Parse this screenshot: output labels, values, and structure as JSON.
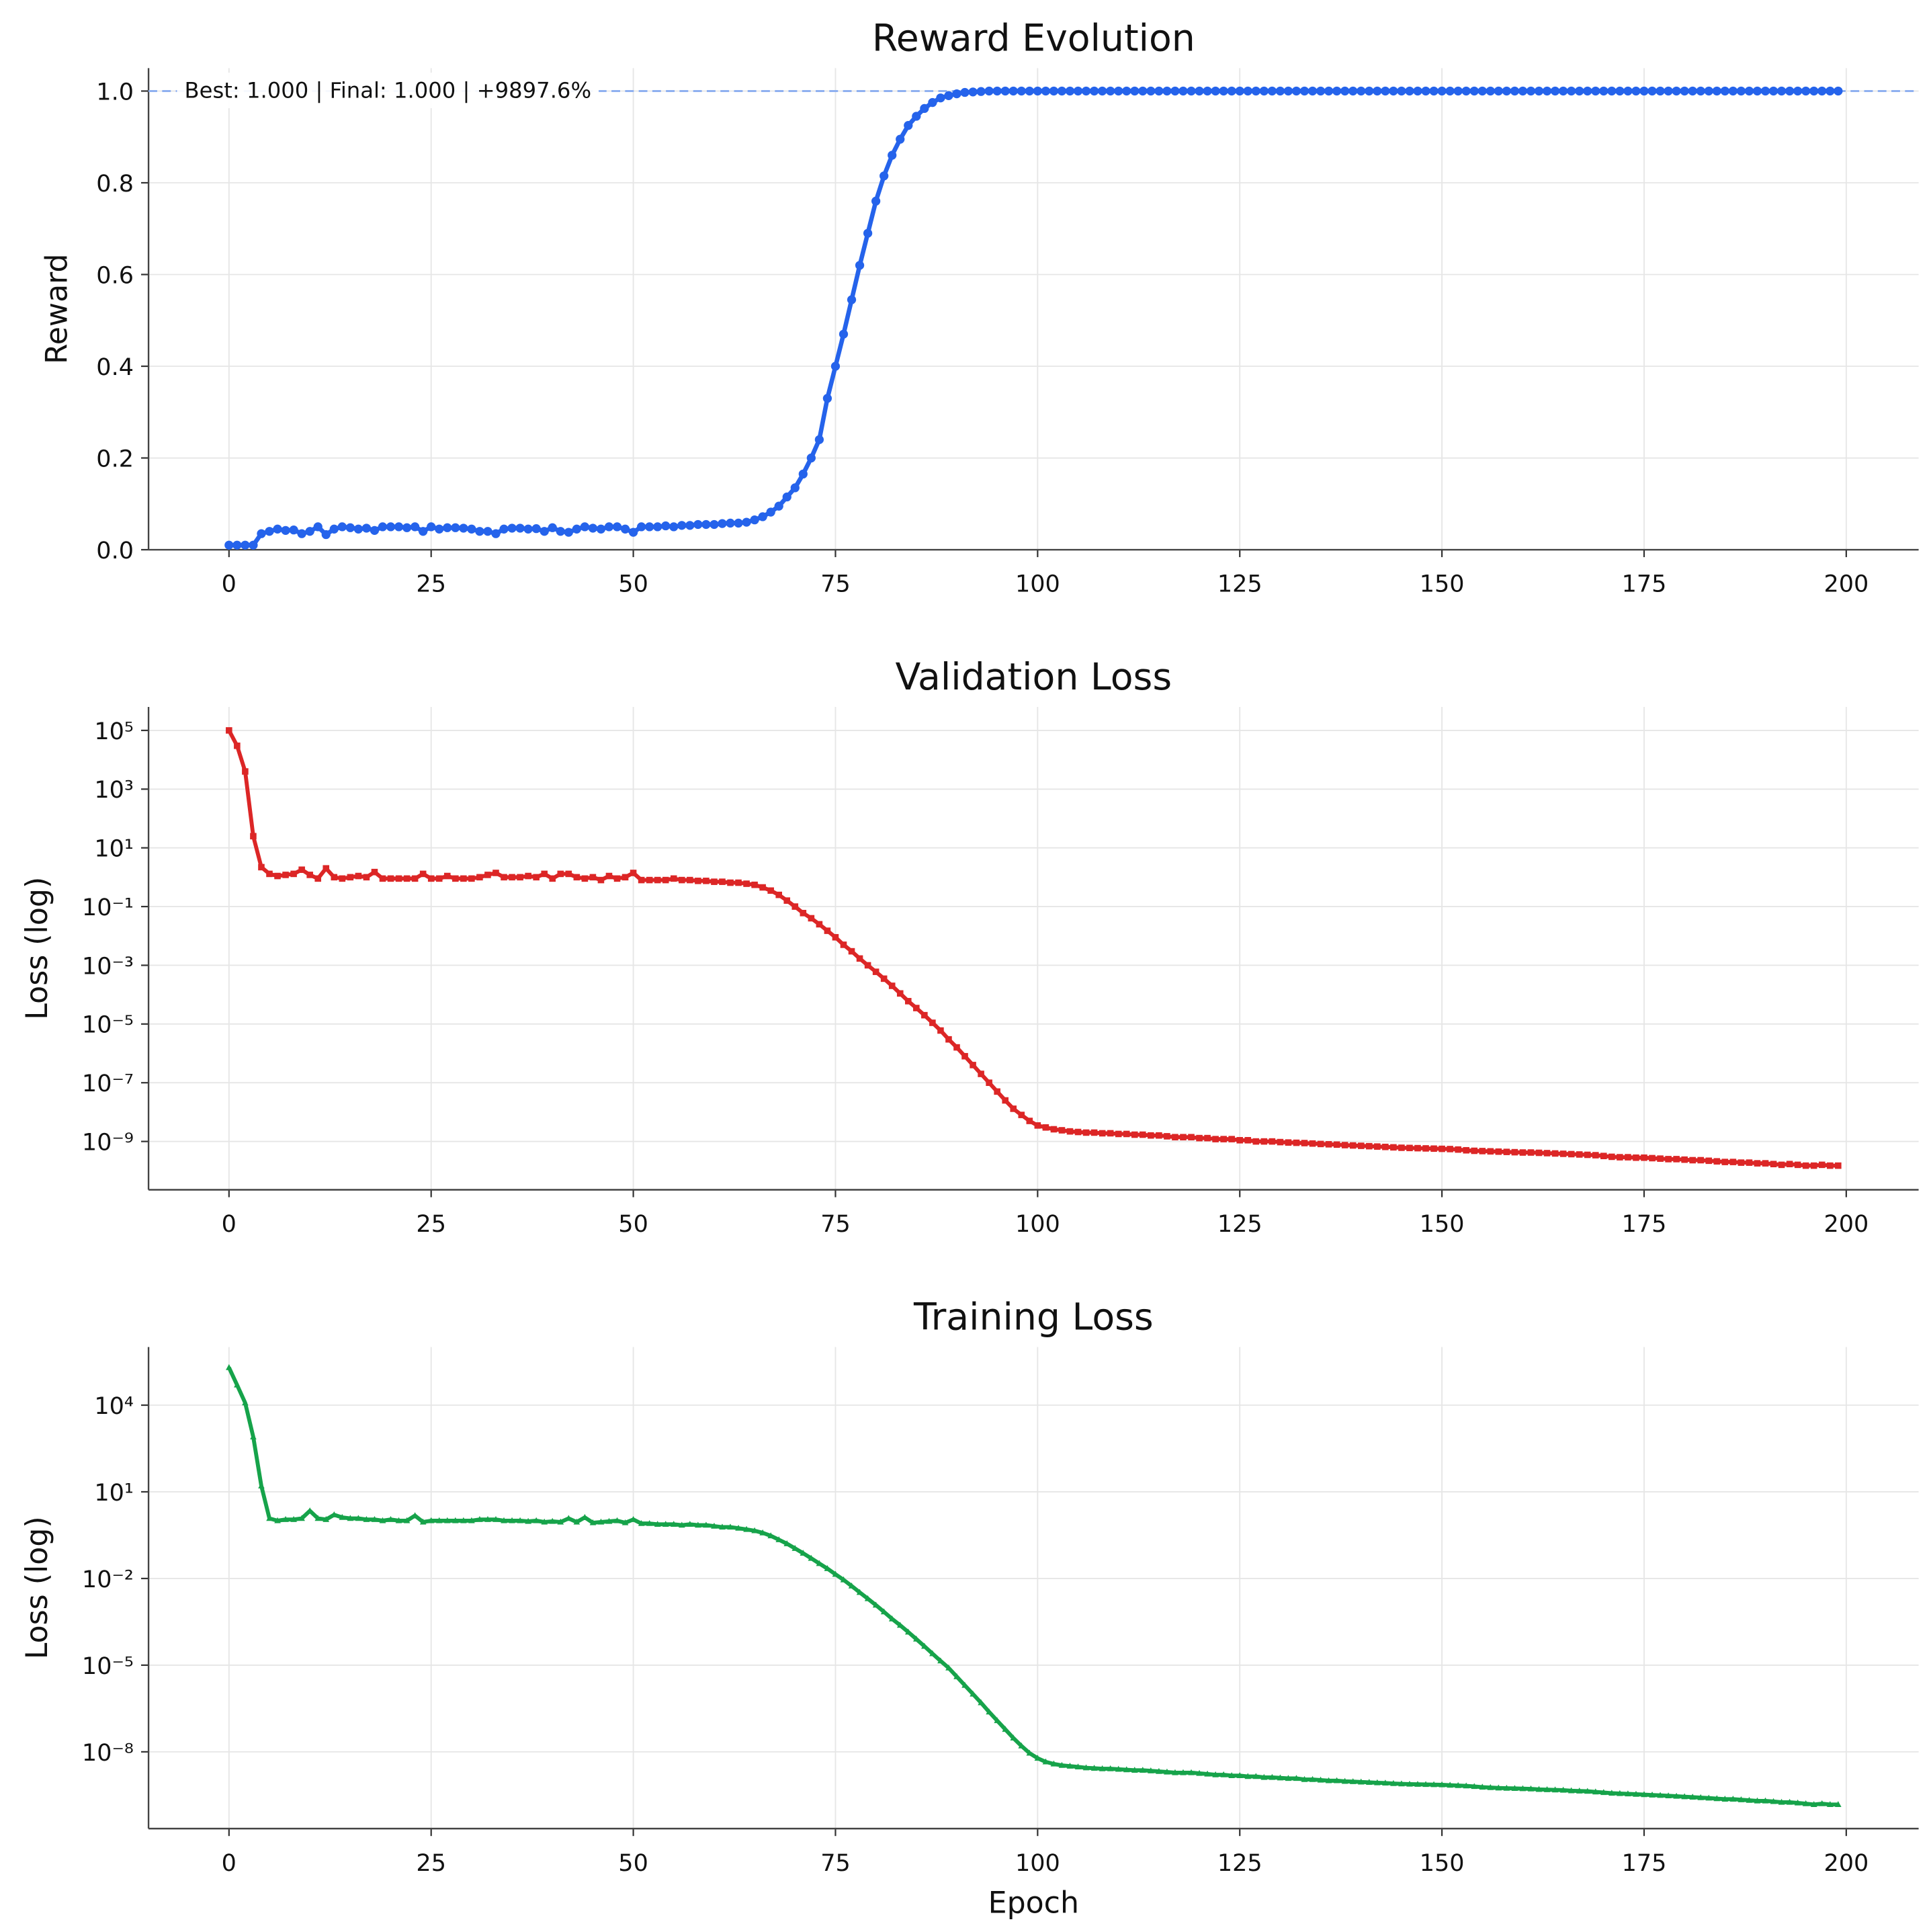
{
  "chart_data": [
    {
      "type": "line",
      "title": "Reward Evolution",
      "ylabel": "Reward",
      "marker": "circle",
      "color": "#2563eb",
      "annotation": "Best: 1.000 | Final: 1.000 | +9897.6%",
      "hline": 1.0,
      "hline_color": "#8fb0f0",
      "grid": true,
      "xlim": [
        -9.95,
        208.95
      ],
      "xticks": [
        0,
        25,
        50,
        75,
        100,
        125,
        150,
        175,
        200
      ],
      "ylim": [
        0,
        1.05
      ],
      "yticks": [
        {
          "value": 0,
          "label": "0.0"
        },
        {
          "value": 0.2,
          "label": "0.2"
        },
        {
          "value": 0.4,
          "label": "0.4"
        },
        {
          "value": 0.6,
          "label": "0.6"
        },
        {
          "value": 0.8,
          "label": "0.8"
        },
        {
          "value": 1,
          "label": "1.0"
        }
      ],
      "x": [
        0,
        1,
        2,
        3,
        4,
        5,
        6,
        7,
        8,
        9,
        10,
        11,
        12,
        13,
        14,
        15,
        16,
        17,
        18,
        19,
        20,
        21,
        22,
        23,
        24,
        25,
        26,
        27,
        28,
        29,
        30,
        31,
        32,
        33,
        34,
        35,
        36,
        37,
        38,
        39,
        40,
        41,
        42,
        43,
        44,
        45,
        46,
        47,
        48,
        49,
        50,
        51,
        52,
        53,
        54,
        55,
        56,
        57,
        58,
        59,
        60,
        61,
        62,
        63,
        64,
        65,
        66,
        67,
        68,
        69,
        70,
        71,
        72,
        73,
        74,
        75,
        76,
        77,
        78,
        79,
        80,
        81,
        82,
        83,
        84,
        85,
        86,
        87,
        88,
        89,
        90,
        91,
        92,
        93,
        94,
        95,
        96,
        97,
        98,
        99,
        100,
        101,
        102,
        103,
        104,
        105,
        106,
        107,
        108,
        109,
        110,
        111,
        112,
        113,
        114,
        115,
        116,
        117,
        118,
        119,
        120,
        121,
        122,
        123,
        124,
        125,
        126,
        127,
        128,
        129,
        130,
        131,
        132,
        133,
        134,
        135,
        136,
        137,
        138,
        139,
        140,
        141,
        142,
        143,
        144,
        145,
        146,
        147,
        148,
        149,
        150,
        151,
        152,
        153,
        154,
        155,
        156,
        157,
        158,
        159,
        160,
        161,
        162,
        163,
        164,
        165,
        166,
        167,
        168,
        169,
        170,
        171,
        172,
        173,
        174,
        175,
        176,
        177,
        178,
        179,
        180,
        181,
        182,
        183,
        184,
        185,
        186,
        187,
        188,
        189,
        190,
        191,
        192,
        193,
        194,
        195,
        196,
        197,
        198,
        199
      ],
      "values": [
        0.01,
        0.01,
        0.01,
        0.01,
        0.035,
        0.04,
        0.045,
        0.042,
        0.043,
        0.035,
        0.04,
        0.05,
        0.033,
        0.045,
        0.05,
        0.048,
        0.045,
        0.047,
        0.042,
        0.05,
        0.05,
        0.05,
        0.048,
        0.05,
        0.04,
        0.05,
        0.045,
        0.048,
        0.048,
        0.047,
        0.045,
        0.04,
        0.04,
        0.035,
        0.045,
        0.047,
        0.047,
        0.045,
        0.046,
        0.04,
        0.048,
        0.04,
        0.038,
        0.045,
        0.05,
        0.047,
        0.045,
        0.05,
        0.05,
        0.045,
        0.038,
        0.05,
        0.05,
        0.05,
        0.052,
        0.05,
        0.053,
        0.053,
        0.055,
        0.055,
        0.055,
        0.057,
        0.058,
        0.058,
        0.06,
        0.065,
        0.072,
        0.082,
        0.095,
        0.115,
        0.135,
        0.165,
        0.2,
        0.24,
        0.33,
        0.4,
        0.47,
        0.545,
        0.62,
        0.69,
        0.76,
        0.815,
        0.86,
        0.895,
        0.925,
        0.945,
        0.962,
        0.975,
        0.985,
        0.99,
        0.994,
        0.997,
        0.998,
        0.999,
        1,
        1,
        1,
        1,
        1,
        1,
        1,
        1,
        1,
        1,
        1,
        1,
        1,
        1,
        1,
        1,
        1,
        1,
        1,
        1,
        1,
        1,
        1,
        1,
        1,
        1,
        1,
        1,
        1,
        1,
        1,
        1,
        1,
        1,
        1,
        1,
        1,
        1,
        1,
        1,
        1,
        1,
        1,
        1,
        1,
        1,
        1,
        1,
        1,
        1,
        1,
        1,
        1,
        1,
        1,
        1,
        1,
        1,
        1,
        1,
        1,
        1,
        1,
        1,
        1,
        1,
        1,
        1,
        1,
        1,
        1,
        1,
        1,
        1,
        1,
        1,
        1,
        1,
        1,
        1,
        1,
        1,
        1,
        1,
        1,
        1,
        1,
        1,
        1,
        1,
        1,
        1,
        1,
        1,
        1,
        1,
        1,
        1,
        1,
        1,
        1,
        1,
        1,
        1,
        1,
        1
      ]
    },
    {
      "type": "line",
      "title": "Validation Loss",
      "ylabel": "Loss (log)",
      "marker": "square",
      "color": "#dc2626",
      "yscale": "log",
      "grid": true,
      "xlim": [
        -9.95,
        208.95
      ],
      "xticks": [
        0,
        25,
        50,
        75,
        100,
        125,
        150,
        175,
        200
      ],
      "ylim": [
        2.26e-11,
        630000.0
      ],
      "yticks": [
        {
          "value": 100000.0,
          "label": "10⁵"
        },
        {
          "value": 1000.0,
          "label": "10³"
        },
        {
          "value": 10.0,
          "label": "10¹"
        },
        {
          "value": 0.1,
          "label": "10⁻¹"
        },
        {
          "value": 0.001,
          "label": "10⁻³"
        },
        {
          "value": 1e-05,
          "label": "10⁻⁵"
        },
        {
          "value": 1e-07,
          "label": "10⁻⁷"
        },
        {
          "value": 1e-09,
          "label": "10⁻⁹"
        }
      ],
      "x": [
        0,
        1,
        2,
        3,
        4,
        5,
        6,
        7,
        8,
        9,
        10,
        11,
        12,
        13,
        14,
        15,
        16,
        17,
        18,
        19,
        20,
        21,
        22,
        23,
        24,
        25,
        26,
        27,
        28,
        29,
        30,
        31,
        32,
        33,
        34,
        35,
        36,
        37,
        38,
        39,
        40,
        41,
        42,
        43,
        44,
        45,
        46,
        47,
        48,
        49,
        50,
        51,
        52,
        53,
        54,
        55,
        56,
        57,
        58,
        59,
        60,
        61,
        62,
        63,
        64,
        65,
        66,
        67,
        68,
        69,
        70,
        71,
        72,
        73,
        74,
        75,
        76,
        77,
        78,
        79,
        80,
        81,
        82,
        83,
        84,
        85,
        86,
        87,
        88,
        89,
        90,
        91,
        92,
        93,
        94,
        95,
        96,
        97,
        98,
        99,
        100,
        101,
        102,
        103,
        104,
        105,
        106,
        107,
        108,
        109,
        110,
        111,
        112,
        113,
        114,
        115,
        116,
        117,
        118,
        119,
        120,
        121,
        122,
        123,
        124,
        125,
        126,
        127,
        128,
        129,
        130,
        131,
        132,
        133,
        134,
        135,
        136,
        137,
        138,
        139,
        140,
        141,
        142,
        143,
        144,
        145,
        146,
        147,
        148,
        149,
        150,
        151,
        152,
        153,
        154,
        155,
        156,
        157,
        158,
        159,
        160,
        161,
        162,
        163,
        164,
        165,
        166,
        167,
        168,
        169,
        170,
        171,
        172,
        173,
        174,
        175,
        176,
        177,
        178,
        179,
        180,
        181,
        182,
        183,
        184,
        185,
        186,
        187,
        188,
        189,
        190,
        191,
        192,
        193,
        194,
        195,
        196,
        197,
        198,
        199
      ],
      "values": [
        100000.0,
        30000.0,
        4000.0,
        25,
        2.2,
        1.3,
        1.1,
        1.2,
        1.3,
        1.8,
        1.2,
        0.9,
        2.0,
        1.0,
        0.9,
        1.0,
        1.1,
        1.0,
        1.5,
        0.9,
        0.9,
        0.9,
        0.9,
        0.9,
        1.3,
        0.9,
        0.9,
        1.1,
        0.9,
        0.9,
        0.9,
        1.0,
        1.2,
        1.4,
        1.0,
        1.0,
        1.0,
        1.1,
        1.0,
        1.3,
        0.9,
        1.3,
        1.3,
        1.0,
        0.9,
        1.0,
        0.8,
        1.1,
        0.9,
        1.0,
        1.4,
        0.8,
        0.8,
        0.8,
        0.8,
        0.9,
        0.8,
        0.8,
        0.75,
        0.75,
        0.7,
        0.7,
        0.65,
        0.65,
        0.6,
        0.55,
        0.45,
        0.35,
        0.25,
        0.16,
        0.1,
        0.06,
        0.04,
        0.025,
        0.015,
        0.009,
        0.005,
        0.003,
        0.0017,
        0.001,
        0.0006,
        0.00035,
        0.0002,
        0.00011,
        6e-05,
        3.5e-05,
        2e-05,
        1.1e-05,
        6e-06,
        3e-06,
        1.6e-06,
        8e-07,
        4e-07,
        2e-07,
        1e-07,
        5e-08,
        2.5e-08,
        1.3e-08,
        8e-09,
        5e-09,
        3.5e-09,
        3e-09,
        2.6e-09,
        2.4e-09,
        2.2e-09,
        2.1e-09,
        2e-09,
        2e-09,
        1.9e-09,
        1.9e-09,
        1.8e-09,
        1.8e-09,
        1.7e-09,
        1.7e-09,
        1.6e-09,
        1.6e-09,
        1.5e-09,
        1.4e-09,
        1.4e-09,
        1.4e-09,
        1.3e-09,
        1.3e-09,
        1.2e-09,
        1.2e-09,
        1.2e-09,
        1.1e-09,
        1.1e-09,
        1e-09,
        1e-09,
        1e-09,
        9.5e-10,
        9.2e-10,
        9e-10,
        8.8e-10,
        8.5e-10,
        8.2e-10,
        8e-10,
        7.8e-10,
        7.5e-10,
        7.3e-10,
        7.1e-10,
        6.9e-10,
        6.7e-10,
        6.5e-10,
        6.3e-10,
        6.1e-10,
        6e-10,
        5.9e-10,
        5.8e-10,
        5.7e-10,
        5.6e-10,
        5.5e-10,
        5.3e-10,
        5e-10,
        4.8e-10,
        4.7e-10,
        4.6e-10,
        4.5e-10,
        4.4e-10,
        4.3e-10,
        4.2e-10,
        4.2e-10,
        4.1e-10,
        4e-10,
        3.9e-10,
        3.8e-10,
        3.7e-10,
        3.6e-10,
        3.5e-10,
        3.4e-10,
        3.2e-10,
        3e-10,
        2.9e-10,
        2.9e-10,
        2.8e-10,
        2.8e-10,
        2.7e-10,
        2.6e-10,
        2.5e-10,
        2.5e-10,
        2.4e-10,
        2.3e-10,
        2.3e-10,
        2.2e-10,
        2.1e-10,
        2e-10,
        2e-10,
        1.9e-10,
        1.9e-10,
        1.8e-10,
        1.8e-10,
        1.7e-10,
        1.6e-10,
        1.7e-10,
        1.6e-10,
        1.5e-10,
        1.5e-10,
        1.6e-10,
        1.5e-10,
        1.5e-10
      ]
    },
    {
      "type": "line",
      "title": "Training Loss",
      "ylabel": "Loss (log)",
      "xlabel": "Epoch",
      "marker": "triangle",
      "color": "#16a34a",
      "yscale": "log",
      "grid": true,
      "xlim": [
        -9.95,
        208.95
      ],
      "xticks": [
        0,
        25,
        50,
        75,
        100,
        125,
        150,
        175,
        200
      ],
      "ylim": [
        2.2e-11,
        1030000.0
      ],
      "yticks": [
        {
          "value": 10000.0,
          "label": "10⁴"
        },
        {
          "value": 10.0,
          "label": "10¹"
        },
        {
          "value": 0.01,
          "label": "10⁻²"
        },
        {
          "value": 1e-05,
          "label": "10⁻⁵"
        },
        {
          "value": 1e-08,
          "label": "10⁻⁸"
        }
      ],
      "x": [
        0,
        1,
        2,
        3,
        4,
        5,
        6,
        7,
        8,
        9,
        10,
        11,
        12,
        13,
        14,
        15,
        16,
        17,
        18,
        19,
        20,
        21,
        22,
        23,
        24,
        25,
        26,
        27,
        28,
        29,
        30,
        31,
        32,
        33,
        34,
        35,
        36,
        37,
        38,
        39,
        40,
        41,
        42,
        43,
        44,
        45,
        46,
        47,
        48,
        49,
        50,
        51,
        52,
        53,
        54,
        55,
        56,
        57,
        58,
        59,
        60,
        61,
        62,
        63,
        64,
        65,
        66,
        67,
        68,
        69,
        70,
        71,
        72,
        73,
        74,
        75,
        76,
        77,
        78,
        79,
        80,
        81,
        82,
        83,
        84,
        85,
        86,
        87,
        88,
        89,
        90,
        91,
        92,
        93,
        94,
        95,
        96,
        97,
        98,
        99,
        100,
        101,
        102,
        103,
        104,
        105,
        106,
        107,
        108,
        109,
        110,
        111,
        112,
        113,
        114,
        115,
        116,
        117,
        118,
        119,
        120,
        121,
        122,
        123,
        124,
        125,
        126,
        127,
        128,
        129,
        130,
        131,
        132,
        133,
        134,
        135,
        136,
        137,
        138,
        139,
        140,
        141,
        142,
        143,
        144,
        145,
        146,
        147,
        148,
        149,
        150,
        151,
        152,
        153,
        154,
        155,
        156,
        157,
        158,
        159,
        160,
        161,
        162,
        163,
        164,
        165,
        166,
        167,
        168,
        169,
        170,
        171,
        172,
        173,
        174,
        175,
        176,
        177,
        178,
        179,
        180,
        181,
        182,
        183,
        184,
        185,
        186,
        187,
        188,
        189,
        190,
        191,
        192,
        193,
        194,
        195,
        196,
        197,
        198,
        199
      ],
      "values": [
        200000.0,
        50000.0,
        12000.0,
        800,
        16,
        1.2,
        1.0,
        1.1,
        1.1,
        1.2,
        2.2,
        1.2,
        1.1,
        1.6,
        1.3,
        1.2,
        1.2,
        1.1,
        1.1,
        1.0,
        1.1,
        1.0,
        1.0,
        1.5,
        0.9,
        1.0,
        1.0,
        1.0,
        1.0,
        1.0,
        1.0,
        1.1,
        1.1,
        1.1,
        1.0,
        1.0,
        1.0,
        0.95,
        1.0,
        0.9,
        0.95,
        0.9,
        1.2,
        0.9,
        1.3,
        0.85,
        0.9,
        0.95,
        1.0,
        0.85,
        1.1,
        0.8,
        0.8,
        0.75,
        0.75,
        0.75,
        0.7,
        0.75,
        0.7,
        0.7,
        0.65,
        0.6,
        0.6,
        0.55,
        0.5,
        0.45,
        0.38,
        0.3,
        0.22,
        0.16,
        0.11,
        0.075,
        0.05,
        0.033,
        0.022,
        0.014,
        0.009,
        0.0055,
        0.0033,
        0.002,
        0.0012,
        0.0007,
        0.0004,
        0.00024,
        0.00014,
        8e-05,
        4.5e-05,
        2.5e-05,
        1.4e-05,
        8e-06,
        4e-06,
        2e-06,
        1e-06,
        5e-07,
        2.4e-07,
        1.2e-07,
        6e-08,
        3e-08,
        1.6e-08,
        9e-09,
        6e-09,
        4.5e-09,
        3.8e-09,
        3.4e-09,
        3.2e-09,
        3e-09,
        2.8e-09,
        2.7e-09,
        2.6e-09,
        2.6e-09,
        2.5e-09,
        2.4e-09,
        2.3e-09,
        2.3e-09,
        2.2e-09,
        2.1e-09,
        2e-09,
        1.9e-09,
        1.9e-09,
        1.9e-09,
        1.8e-09,
        1.7e-09,
        1.6e-09,
        1.6e-09,
        1.5e-09,
        1.5e-09,
        1.4e-09,
        1.4e-09,
        1.3e-09,
        1.3e-09,
        1.25e-09,
        1.2e-09,
        1.2e-09,
        1.1e-09,
        1.1e-09,
        1.05e-09,
        1e-09,
        1e-09,
        9.5e-10,
        9.3e-10,
        9e-10,
        8.8e-10,
        8.5e-10,
        8.3e-10,
        8e-10,
        7.8e-10,
        7.6e-10,
        7.5e-10,
        7.4e-10,
        7.3e-10,
        7.2e-10,
        7e-10,
        6.8e-10,
        6.6e-10,
        6.3e-10,
        6e-10,
        5.8e-10,
        5.6e-10,
        5.5e-10,
        5.4e-10,
        5.3e-10,
        5.2e-10,
        5e-10,
        4.9e-10,
        4.8e-10,
        4.7e-10,
        4.5e-10,
        4.4e-10,
        4.3e-10,
        4.1e-10,
        3.9e-10,
        3.7e-10,
        3.6e-10,
        3.5e-10,
        3.4e-10,
        3.3e-10,
        3.2e-10,
        3.1e-10,
        3e-10,
        2.9e-10,
        2.8e-10,
        2.7e-10,
        2.6e-10,
        2.5e-10,
        2.4e-10,
        2.3e-10,
        2.3e-10,
        2.2e-10,
        2.1e-10,
        2e-10,
        2e-10,
        1.9e-10,
        1.8e-10,
        1.8e-10,
        1.7e-10,
        1.6e-10,
        1.5e-10,
        1.6e-10,
        1.5e-10,
        1.5e-10
      ]
    }
  ]
}
